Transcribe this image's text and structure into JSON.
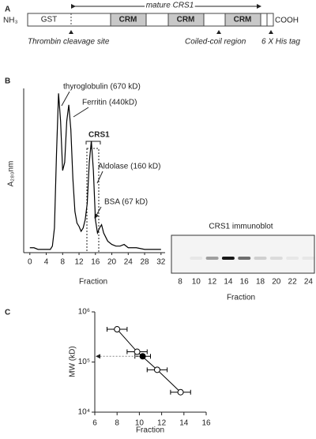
{
  "figure": {
    "panel_labels": [
      "A",
      "B",
      "C"
    ]
  },
  "diagram": {
    "n_terminus": "NH₃",
    "c_terminus": "COOH",
    "domains": [
      "GST",
      "CRM",
      "CRM",
      "CRM"
    ],
    "mature_label": "mature CRS1",
    "annotations": [
      "Thrombin cleavage site",
      "Coiled-coil region",
      "6 X His tag"
    ]
  },
  "chart_data": [
    {
      "type": "line",
      "xlabel": "Fraction",
      "ylabel": "A₂₈₀nm",
      "color": "#000000",
      "x": [
        0,
        1,
        2,
        3,
        4,
        5,
        5.5,
        6,
        6.5,
        7,
        7.5,
        8,
        8.5,
        9,
        9.5,
        10,
        10.5,
        11,
        11.5,
        12,
        12.5,
        13,
        13.5,
        14,
        14.5,
        15,
        15.5,
        16,
        16.5,
        17,
        17.5,
        18,
        19,
        20,
        21,
        22,
        23,
        24,
        26,
        28,
        30,
        32
      ],
      "values": [
        0.03,
        0.03,
        0.02,
        0.02,
        0.02,
        0.02,
        0.04,
        0.15,
        0.6,
        0.97,
        0.8,
        0.5,
        0.55,
        0.8,
        0.9,
        0.75,
        0.45,
        0.25,
        0.18,
        0.16,
        0.13,
        0.15,
        0.2,
        0.3,
        0.55,
        0.68,
        0.5,
        0.2,
        0.12,
        0.15,
        0.17,
        0.12,
        0.07,
        0.05,
        0.04,
        0.04,
        0.05,
        0.03,
        0.03,
        0.02,
        0.02,
        0.02
      ],
      "xlim": [
        -1.5,
        33
      ],
      "ylim": [
        0,
        1
      ],
      "xticks": [
        0,
        4,
        8,
        12,
        16,
        20,
        24,
        28,
        32
      ],
      "annotations": [
        "thyroglobulin (670 kD)",
        "Ferritin (440kD)",
        "CRS1",
        "Aldolase (160 kD)",
        "BSA (67 kD)"
      ]
    },
    {
      "type": "scatter",
      "xlabel": "Fraction",
      "ylabel": "MW (kD)",
      "log_y": true,
      "xlim": [
        6,
        16
      ],
      "ylim": [
        10000,
        1000000
      ],
      "xticks": [
        6,
        8,
        10,
        12,
        14,
        16
      ],
      "yticks": [
        {
          "value": 10000,
          "label": "10⁴"
        },
        {
          "value": 100000,
          "label": "10⁵"
        },
        {
          "value": 1000000,
          "label": "10⁶"
        }
      ],
      "series": [
        {
          "color": "#000000",
          "marker": "open",
          "x": [
            8,
            9.8,
            11.6,
            13.7
          ],
          "values": [
            450000,
            160000,
            70000,
            25000
          ],
          "xerr": [
            0.9,
            0.9,
            0.9,
            0.9
          ]
        },
        {
          "color": "#000000",
          "marker": "filled",
          "x": [
            10.3
          ],
          "values": [
            130000
          ],
          "xerr": [
            0.7
          ]
        }
      ]
    }
  ],
  "immunoblot": {
    "title": "CRS1 immunoblot",
    "lanes": [
      "8",
      "10",
      "12",
      "14",
      "16",
      "18",
      "20",
      "22",
      "24"
    ],
    "xlabel": "Fraction"
  }
}
